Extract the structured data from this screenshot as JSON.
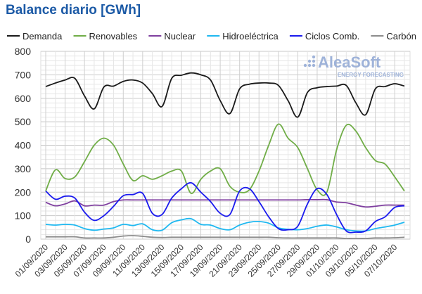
{
  "chart_data": {
    "type": "line",
    "title": "Balance diario [GWh]",
    "watermark": "AleaSoft ENERGY FORECASTING",
    "ylim": [
      0,
      800
    ],
    "yticks": [
      0,
      100,
      200,
      300,
      400,
      500,
      600,
      700,
      800
    ],
    "xticklabels": [
      "01/09/2020",
      "03/09/2020",
      "05/09/2020",
      "07/09/2020",
      "09/09/2020",
      "11/09/2020",
      "13/09/2020",
      "15/09/2020",
      "17/09/2020",
      "19/09/2020",
      "21/09/2020",
      "23/09/2020",
      "25/09/2020",
      "27/09/2020",
      "29/09/2020",
      "01/10/2020",
      "03/10/2020",
      "05/10/2020",
      "07/10/2020"
    ],
    "legend_position": "top",
    "series": [
      {
        "name": "Demanda",
        "color": "#1a1a1a",
        "values": [
          650,
          665,
          678,
          685,
          610,
          555,
          648,
          652,
          672,
          678,
          665,
          620,
          565,
          685,
          698,
          708,
          700,
          678,
          590,
          535,
          640,
          660,
          665,
          665,
          655,
          590,
          520,
          625,
          645,
          650,
          652,
          655,
          580,
          530,
          640,
          650,
          662,
          652
        ]
      },
      {
        "name": "Renovables",
        "color": "#70ad47",
        "values": [
          205,
          295,
          258,
          265,
          330,
          400,
          430,
          400,
          320,
          250,
          270,
          255,
          270,
          290,
          290,
          195,
          255,
          290,
          300,
          225,
          200,
          210,
          290,
          400,
          490,
          430,
          390,
          300,
          210,
          200,
          380,
          485,
          460,
          390,
          335,
          320,
          265,
          205
        ]
      },
      {
        "name": "Nuclear",
        "color": "#7f3f9f",
        "values": [
          157,
          142,
          150,
          163,
          142,
          145,
          145,
          160,
          167,
          167,
          167,
          167,
          167,
          167,
          167,
          167,
          167,
          167,
          167,
          167,
          167,
          167,
          167,
          167,
          167,
          167,
          167,
          168,
          168,
          168,
          158,
          155,
          145,
          137,
          140,
          145,
          145,
          145
        ]
      },
      {
        "name": "Hidroeléctrica",
        "color": "#1fb8f0",
        "values": [
          63,
          60,
          63,
          60,
          45,
          38,
          43,
          48,
          63,
          58,
          65,
          40,
          38,
          70,
          82,
          87,
          63,
          60,
          45,
          40,
          60,
          72,
          75,
          68,
          48,
          42,
          40,
          45,
          55,
          60,
          52,
          40,
          35,
          35,
          45,
          52,
          60,
          72
        ]
      },
      {
        "name": "Ciclos Comb.",
        "color": "#1a1aee",
        "values": [
          205,
          170,
          183,
          175,
          115,
          80,
          100,
          140,
          185,
          190,
          195,
          110,
          105,
          175,
          215,
          240,
          200,
          160,
          110,
          105,
          205,
          215,
          160,
          95,
          45,
          40,
          55,
          150,
          215,
          190,
          105,
          35,
          30,
          35,
          75,
          95,
          135,
          142
        ]
      },
      {
        "name": "Carbón",
        "color": "#8c8c8c",
        "values": [
          10,
          10,
          10,
          10,
          5,
          5,
          5,
          8,
          13,
          15,
          12,
          8,
          7,
          8,
          8,
          8,
          8,
          8,
          8,
          8,
          8,
          8,
          8,
          8,
          6,
          5,
          5,
          5,
          5,
          5,
          5,
          3,
          3,
          3,
          5,
          5,
          6,
          8
        ]
      }
    ]
  }
}
